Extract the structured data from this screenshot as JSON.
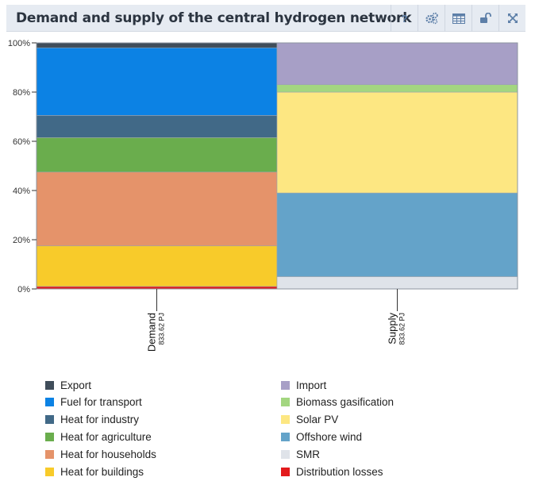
{
  "header": {
    "title": "Demand and supply of the central hydrogen network",
    "help_label": "?"
  },
  "chart_data": {
    "type": "bar",
    "stacked": true,
    "normalized": true,
    "categories": [
      "Demand",
      "Supply"
    ],
    "category_totals": [
      "833.62 PJ",
      "833.62 PJ"
    ],
    "y_ticks": [
      "0%",
      "20%",
      "40%",
      "60%",
      "80%",
      "100%"
    ],
    "ylim": [
      0,
      100
    ],
    "grid": false,
    "legend_position": "bottom",
    "series": [
      {
        "name": "Distribution losses",
        "stack": "Demand",
        "value": 1.0,
        "color": "#e31a1c"
      },
      {
        "name": "Heat for buildings",
        "stack": "Demand",
        "value": 16.5,
        "color": "#f8cb2a"
      },
      {
        "name": "Heat for households",
        "stack": "Demand",
        "value": 30.0,
        "color": "#e5936a"
      },
      {
        "name": "Heat for agriculture",
        "stack": "Demand",
        "value": 14.0,
        "color": "#6aad4d"
      },
      {
        "name": "Heat for industry",
        "stack": "Demand",
        "value": 9.0,
        "color": "#416987"
      },
      {
        "name": "Fuel for transport",
        "stack": "Demand",
        "value": 27.5,
        "color": "#0c82e4"
      },
      {
        "name": "Export",
        "stack": "Demand",
        "value": 2.0,
        "color": "#404d5a"
      },
      {
        "name": "SMR",
        "stack": "Supply",
        "value": 5.0,
        "color": "#dfe3e9"
      },
      {
        "name": "Offshore wind",
        "stack": "Supply",
        "value": 34.0,
        "color": "#64a3c9"
      },
      {
        "name": "Solar PV",
        "stack": "Supply",
        "value": 41.0,
        "color": "#fde782"
      },
      {
        "name": "Biomass gasification",
        "stack": "Supply",
        "value": 3.0,
        "color": "#a3d680"
      },
      {
        "name": "Import",
        "stack": "Supply",
        "value": 17.0,
        "color": "#a79fc6"
      }
    ]
  },
  "legend": {
    "left": [
      {
        "label": "Export",
        "color": "#404d5a"
      },
      {
        "label": "Fuel for transport",
        "color": "#0c82e4"
      },
      {
        "label": "Heat for industry",
        "color": "#416987"
      },
      {
        "label": "Heat for agriculture",
        "color": "#6aad4d"
      },
      {
        "label": "Heat for households",
        "color": "#e5936a"
      },
      {
        "label": "Heat for buildings",
        "color": "#f8cb2a"
      }
    ],
    "right": [
      {
        "label": "Import",
        "color": "#a79fc6"
      },
      {
        "label": "Biomass gasification",
        "color": "#a3d680"
      },
      {
        "label": "Solar PV",
        "color": "#fde782"
      },
      {
        "label": "Offshore wind",
        "color": "#64a3c9"
      },
      {
        "label": "SMR",
        "color": "#dfe3e9"
      },
      {
        "label": "Distribution losses",
        "color": "#e31a1c"
      }
    ]
  }
}
